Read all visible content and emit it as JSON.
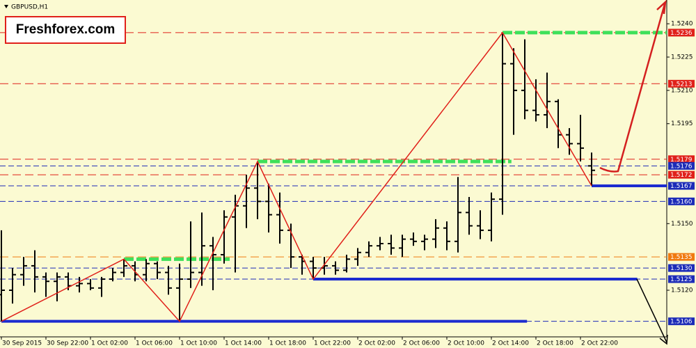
{
  "chart_data": {
    "type": "ohlc",
    "title": "GBPUSD,H1",
    "brand": "Freshforex.com",
    "color": "#000000",
    "categories": [
      "30 Sep 2015",
      null,
      null,
      null,
      "30 Sep 22:00",
      null,
      null,
      null,
      "1 Oct 02:00",
      null,
      null,
      null,
      "1 Oct 06:00",
      null,
      null,
      null,
      "1 Oct 10:00",
      null,
      null,
      null,
      "1 Oct 14:00",
      null,
      null,
      null,
      "1 Oct 18:00",
      null,
      null,
      null,
      "1 Oct 22:00",
      null,
      null,
      null,
      "2 Oct 02:00",
      null,
      null,
      null,
      "2 Oct 06:00",
      null,
      null,
      null,
      "2 Oct 10:00",
      null,
      null,
      null,
      "2 Oct 14:00",
      null,
      null,
      null,
      "2 Oct 18:00",
      null,
      null,
      null,
      "2 Oct 22:00",
      null
    ],
    "open": [
      1.5118,
      1.512,
      1.5127,
      1.5131,
      1.5126,
      1.5124,
      1.5126,
      1.5122,
      1.5123,
      1.5121,
      1.5125,
      1.5128,
      1.5131,
      1.5127,
      1.5132,
      1.5128,
      1.5121,
      1.5125,
      1.5128,
      1.514,
      1.5136,
      1.5153,
      1.5158,
      1.5166,
      1.516,
      1.5154,
      1.5147,
      1.5135,
      1.5133,
      1.513,
      1.5131,
      1.5129,
      1.5134,
      1.5137,
      1.514,
      1.5141,
      1.5139,
      1.5143,
      1.5142,
      1.5143,
      1.5148,
      1.5142,
      1.5155,
      1.5149,
      1.5147,
      1.5161,
      1.5222,
      1.521,
      1.5201,
      1.5199,
      1.5205,
      1.519,
      1.5186,
      1.5176
    ],
    "high": [
      1.5147,
      1.513,
      1.5135,
      1.5138,
      1.5128,
      1.5128,
      1.5128,
      1.5126,
      1.5125,
      1.5126,
      1.513,
      1.5134,
      1.5133,
      1.5134,
      1.5133,
      1.5131,
      1.5132,
      1.5151,
      1.5155,
      1.5144,
      1.5156,
      1.5163,
      1.5172,
      1.5178,
      1.5168,
      1.5164,
      1.515,
      1.5136,
      1.5135,
      1.5135,
      1.5133,
      1.5136,
      1.5139,
      1.5142,
      1.5144,
      1.5145,
      1.5145,
      1.5146,
      1.5145,
      1.5152,
      1.5151,
      1.5171,
      1.5162,
      1.5156,
      1.5164,
      1.5236,
      1.5229,
      1.5233,
      1.5215,
      1.5218,
      1.5206,
      1.5193,
      1.5199,
      1.5182
    ],
    "low": [
      1.5106,
      1.5114,
      1.5122,
      1.5119,
      1.5117,
      1.5115,
      1.512,
      1.5119,
      1.512,
      1.5117,
      1.5124,
      1.5126,
      1.5124,
      1.5124,
      1.5125,
      1.5118,
      1.5106,
      1.5121,
      1.5122,
      1.512,
      1.5132,
      1.5128,
      1.5148,
      1.5152,
      1.5146,
      1.5141,
      1.513,
      1.5127,
      1.5125,
      1.5127,
      1.5127,
      1.5128,
      1.5131,
      1.5135,
      1.5138,
      1.5136,
      1.5135,
      1.514,
      1.5138,
      1.5139,
      1.5138,
      1.5137,
      1.5145,
      1.5143,
      1.5142,
      1.5154,
      1.519,
      1.5197,
      1.5196,
      1.5193,
      1.5184,
      1.5181,
      1.5178,
      1.5167
    ],
    "close": [
      1.512,
      1.5127,
      1.5131,
      1.5126,
      1.5124,
      1.5126,
      1.5122,
      1.5123,
      1.5121,
      1.5125,
      1.5128,
      1.5131,
      1.5127,
      1.5132,
      1.5128,
      1.5121,
      1.5125,
      1.5128,
      1.514,
      1.5136,
      1.5153,
      1.5158,
      1.5166,
      1.516,
      1.5154,
      1.5147,
      1.5135,
      1.5133,
      1.513,
      1.5131,
      1.5129,
      1.5134,
      1.5137,
      1.514,
      1.5141,
      1.5139,
      1.5143,
      1.5142,
      1.5143,
      1.5148,
      1.5142,
      1.5155,
      1.5149,
      1.5147,
      1.5161,
      1.5222,
      1.521,
      1.5201,
      1.5199,
      1.5205,
      1.519,
      1.5186,
      1.5184,
      1.5174
    ],
    "ylim": [
      1.5099,
      1.52507
    ],
    "yticks": [
      {
        "value": 1.524,
        "label": "1.5240"
      },
      1.5225,
      {
        "value": 1.521,
        "label": "1.5210"
      },
      1.5195,
      {
        "value": 1.515,
        "label": "1.5150"
      },
      {
        "value": 1.512,
        "label": "1.5120"
      }
    ],
    "grid": false,
    "levels": [
      {
        "value": 1.5236,
        "color": "#e0201a"
      },
      {
        "value": 1.5213,
        "color": "#e0201a"
      },
      {
        "value": 1.5179,
        "color": "#e0201a"
      },
      {
        "value": 1.5176,
        "color": "#1c2bb8"
      },
      {
        "value": 1.5172,
        "color": "#e0201a"
      },
      {
        "value": 1.5167,
        "color": "#1c2bb8"
      },
      {
        "value": {
          "value": 1.516,
          "label": "1.5160"
        },
        "color": "#1c2bb8"
      },
      {
        "value": 1.5135,
        "color": "#f07a10"
      },
      {
        "value": {
          "value": 1.513,
          "label": "1.5130"
        },
        "color": "#1c2bb8"
      },
      {
        "value": 1.5125,
        "color": "#1c2bb8"
      },
      {
        "value": 1.5106,
        "color": "#1c2bb8"
      }
    ],
    "zigzag": {
      "color": "#e0201a",
      "bars": [
        0,
        11,
        16,
        23,
        28,
        45,
        53
      ],
      "values": [
        1.5106,
        1.5134,
        1.5106,
        1.5178,
        1.5125,
        1.5236,
        1.5167
      ]
    },
    "zones": [
      {
        "value": 1.5134,
        "from": 11,
        "to": 20.5,
        "color": "#3ee05a"
      },
      {
        "value": 1.5178,
        "from": 23,
        "to": 45.8,
        "color": "#3ee05a"
      },
      {
        "value": 1.5236,
        "from": 45,
        "to": 59.75,
        "color": "#3ee05a"
      },
      {
        "value": 1.5106,
        "from": 0,
        "to": 47.2,
        "color": "#1c2bd0"
      },
      {
        "value": 1.5125,
        "from": 28,
        "to": 57.1,
        "color": "#1c2bd0"
      },
      {
        "value": 1.5167,
        "from": 53,
        "to": 59.75,
        "color": "#1c2bd0"
      }
    ]
  }
}
